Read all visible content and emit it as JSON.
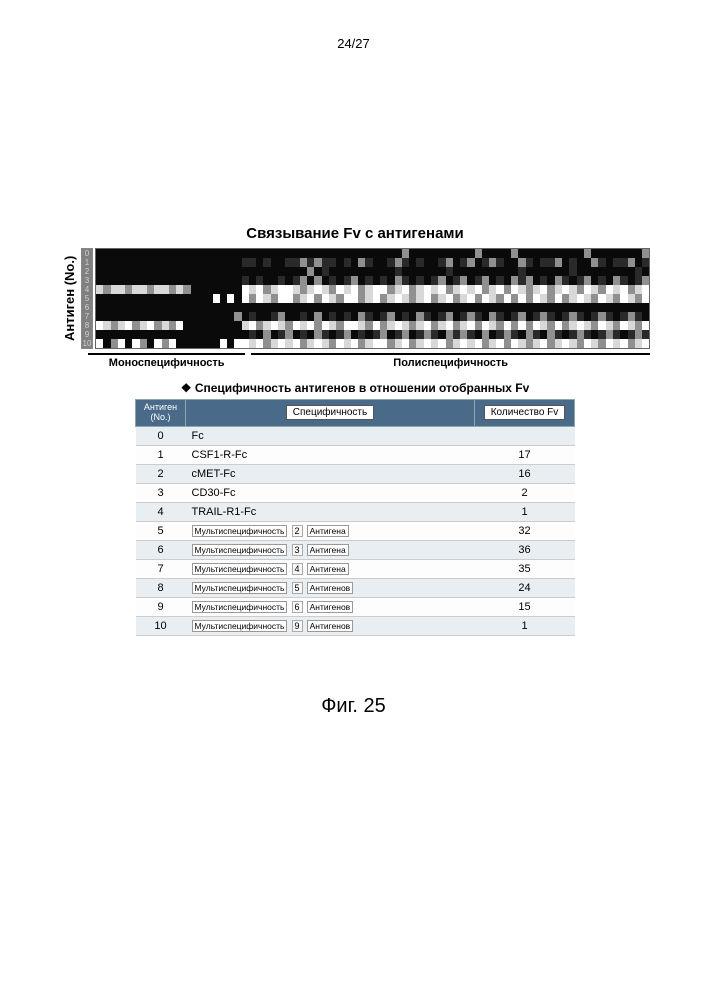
{
  "page_number": "24/27",
  "chart": {
    "title": "Связывание Fv с антигенами",
    "ylabel": "Антиген (No.)",
    "ynums": [
      "0",
      "1",
      "2",
      "3",
      "4",
      "5",
      "6",
      "7",
      "8",
      "9",
      "10"
    ],
    "section_mono": "Моноспецифичность",
    "section_poly": "Полиспецифичность",
    "colors": {
      "black": "#0a0a0a",
      "dark": "#2a2a2a",
      "grey": "#909090",
      "light": "#d8d8d8",
      "white": "#ffffff"
    },
    "rows": [
      "bbbbbbbbbbbbbbbbbbbbbbbbbbbbbbbbbbbbbbbbbbgbbbbbbbbbgbbbbgbbbbbbbbbgbbbbbbbg",
      "bbbbbbbbbbbbbbbbbbbbddbdbbddgdgddbdbgdbbdgdbdbbdgbdgbdgdbbgdbddgbdbbgdbddgbd",
      "bbbbbbbbbbbbbbbbbbbbbbbbbbbbbgbdbbbbbbbbbdbbbbbbdbbbbbbbbbdbbbbbbdbbbbbbbbdb",
      "bbbbbbbbbbbbbbbbbbbbdbdbbdbdgbgbdbdgbdbdbgdbdbdgbdgbdgbdbgdgbdbgdbdgbdbgdbdg",
      "lgllgllgllglgbbbbbbbwlwglwwlglwlgwlwglwwglwglwlwglwlwglwgwlglwglwlgwlgwlwglw",
      "bbbbbbbbbbbbbbbbwbwbwgwlgwwglwgwlgwwglwglwlglwglwglwgwlgwgwgwlgwglwlgwlgwlgw",
      "bbbbbbbbbbbbbbbbbbbbbbbbbbbbbbbbbbbbbbbbbbbbbbbbbbbbbbbbbbbbbbbbbbbbbbbbbbbb",
      "bbbbbbbbbbbbbbbbbbbgbdbbdgbbdbgbdbdbgdbdgbdbgdbdgbdgdbgdbdgbdgdbdgdbdgdbdgdb",
      "wlglwglwglgwbbbbbbbblwglwlgwlwgwlgwwlgwglwlglwglwglwgwlgwgwgwlgwglwlgwlgwlgw",
      "bbbbbbbbbbbbbbbbbbbbbdbgbdgbdbgdbdgbdbdgbdgbdgdbgdgdbgbdgdbgdbgdbdgdbdgdbdgd",
      "wbgwbwgbwgwbbbbbbwbwwlwglwlwglwlgwlwglwwglwglwlwglwlwglwgwlglwglwlgwlgwlwglw"
    ]
  },
  "table": {
    "title": "Специфичность антигенов в отношении отобранных Fv",
    "headers": {
      "c1": "Антиген (No.)",
      "c2": "Специфичность",
      "c3": "Количество Fv"
    },
    "rows": [
      {
        "n": "0",
        "spec": "Fc",
        "count": ""
      },
      {
        "n": "1",
        "spec": "CSF1-R-Fc",
        "count": "17"
      },
      {
        "n": "2",
        "spec": "cMET-Fc",
        "count": "16"
      },
      {
        "n": "3",
        "spec": "CD30-Fc",
        "count": "2"
      },
      {
        "n": "4",
        "spec": "TRAIL-R1-Fc",
        "count": "1"
      },
      {
        "n": "5",
        "ms": true,
        "ms_label": "Мультиспецифичность",
        "ms_num": "2",
        "ms_suffix": "Антигена",
        "count": "32"
      },
      {
        "n": "6",
        "ms": true,
        "ms_label": "Мультиспецифичность",
        "ms_num": "3",
        "ms_suffix": "Антигена",
        "count": "36"
      },
      {
        "n": "7",
        "ms": true,
        "ms_label": "Мультиспецифичность",
        "ms_num": "4",
        "ms_suffix": "Антигена",
        "count": "35"
      },
      {
        "n": "8",
        "ms": true,
        "ms_label": "Мультиспецифичность",
        "ms_num": "5",
        "ms_suffix": "Антигенов",
        "count": "24"
      },
      {
        "n": "9",
        "ms": true,
        "ms_label": "Мультиспецифичность",
        "ms_num": "6",
        "ms_suffix": "Антигенов",
        "count": "15"
      },
      {
        "n": "10",
        "ms": true,
        "ms_label": "Мультиспецифичность",
        "ms_num": "9",
        "ms_suffix": "Антигенов",
        "count": "1"
      }
    ]
  },
  "caption": "Фиг. 25"
}
